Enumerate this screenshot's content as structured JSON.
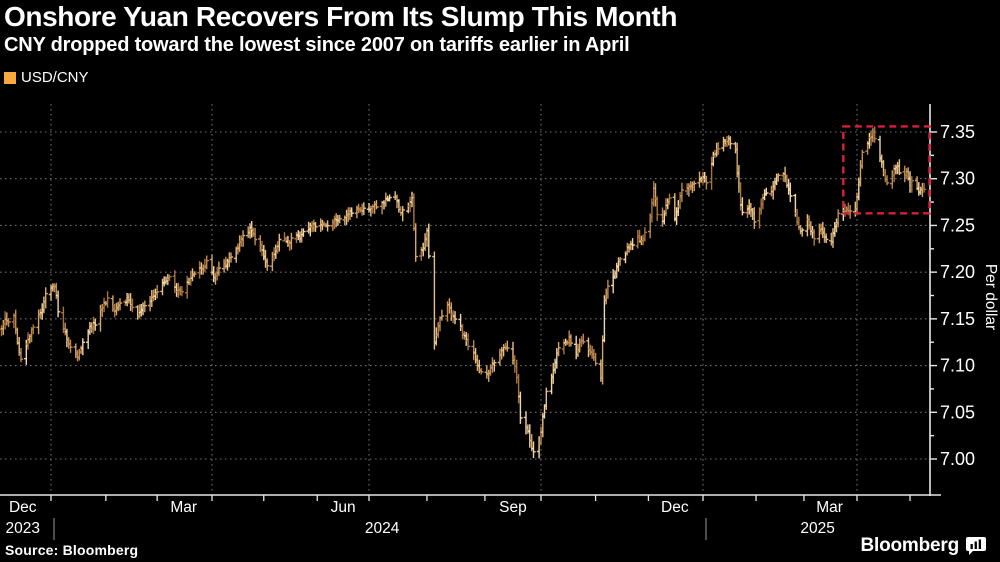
{
  "header": {
    "title": "Onshore Yuan Recovers From Its Slump This Month",
    "subtitle": "CNY dropped toward the lowest since 2007 on tariffs earlier in April"
  },
  "legend": {
    "label": "USD/CNY",
    "swatch_color": "#f7a93d"
  },
  "source": "Source: Bloomberg",
  "branding": {
    "logo_text": "Bloomberg",
    "logo_icon": "bar-chart-bubble-icon"
  },
  "colors": {
    "background": "#000000",
    "text": "#ffffff",
    "axis": "#e8e8e8",
    "grid_dots": "#6b6b6b",
    "year_separator": "#9a9a9a",
    "annotation_red": "#d81f3c",
    "bar_palette": [
      "#a8743e",
      "#c08a4e",
      "#d4a468",
      "#e6bf86",
      "#f3d7a6"
    ]
  },
  "chart_data": {
    "type": "bar",
    "subtype": "ohlc-daily-bars",
    "title": "Onshore Yuan Recovers From Its Slump This Month",
    "xlabel": "",
    "ylabel": "Per dollar",
    "grid": "dotted",
    "y_axis": {
      "side": "right",
      "min": 6.97,
      "max": 7.385,
      "major_tick_step": 0.05,
      "minor_tick_step": 0.025,
      "tick_labels": [
        "7.00",
        "7.05",
        "7.10",
        "7.15",
        "7.20",
        "7.25",
        "7.30",
        "7.35"
      ]
    },
    "x_axis": {
      "month_labels": [
        {
          "label": "Dec",
          "center": "2023-12-16"
        },
        {
          "label": "Mar",
          "center": "2024-03-16"
        },
        {
          "label": "Jun",
          "center": "2024-06-16"
        },
        {
          "label": "Sep",
          "center": "2024-09-16"
        },
        {
          "label": "Dec",
          "center": "2024-12-16"
        },
        {
          "label": "Mar",
          "center": "2025-03-16"
        }
      ],
      "year_labels": [
        {
          "label": "2023",
          "center": "2023-12-16"
        },
        {
          "label": "2024",
          "center": "2024-07-08"
        },
        {
          "label": "2025",
          "center": "2025-03-09"
        }
      ],
      "year_separators": [
        "2024-01-01",
        "2025-01-01"
      ],
      "gridline_months": [
        "2024-01-01",
        "2024-04-01",
        "2024-07-01",
        "2024-10-01",
        "2025-01-01",
        "2025-04-01"
      ]
    },
    "annotation_box": {
      "style": "dashed",
      "color": "#d81f3c",
      "x_start": "2025-03-24",
      "x_end": "axis",
      "y_top": 7.356,
      "y_bottom": 7.263
    },
    "series": [
      {
        "name": "USD/CNY",
        "points": [
          [
            "2023-12-04",
            7.138
          ],
          [
            "2023-12-06",
            7.152
          ],
          [
            "2023-12-08",
            7.145
          ],
          [
            "2023-12-11",
            7.155
          ],
          [
            "2023-12-13",
            7.125
          ],
          [
            "2023-12-15",
            7.105
          ],
          [
            "2023-12-19",
            7.13
          ],
          [
            "2023-12-22",
            7.14
          ],
          [
            "2023-12-27",
            7.16
          ],
          [
            "2023-12-29",
            7.178
          ],
          [
            "2024-01-03",
            7.185
          ],
          [
            "2024-01-05",
            7.16
          ],
          [
            "2024-01-09",
            7.135
          ],
          [
            "2024-01-12",
            7.12
          ],
          [
            "2024-01-16",
            7.108
          ],
          [
            "2024-01-19",
            7.125
          ],
          [
            "2024-01-23",
            7.14
          ],
          [
            "2024-01-26",
            7.145
          ],
          [
            "2024-01-30",
            7.162
          ],
          [
            "2024-02-02",
            7.17
          ],
          [
            "2024-02-06",
            7.158
          ],
          [
            "2024-02-09",
            7.168
          ],
          [
            "2024-02-14",
            7.172
          ],
          [
            "2024-02-18",
            7.152
          ],
          [
            "2024-02-21",
            7.16
          ],
          [
            "2024-02-26",
            7.168
          ],
          [
            "2024-02-29",
            7.176
          ],
          [
            "2024-03-05",
            7.188
          ],
          [
            "2024-03-08",
            7.195
          ],
          [
            "2024-03-12",
            7.182
          ],
          [
            "2024-03-15",
            7.178
          ],
          [
            "2024-03-19",
            7.192
          ],
          [
            "2024-03-22",
            7.198
          ],
          [
            "2024-03-26",
            7.205
          ],
          [
            "2024-03-29",
            7.21
          ],
          [
            "2024-04-02",
            7.196
          ],
          [
            "2024-04-05",
            7.202
          ],
          [
            "2024-04-09",
            7.21
          ],
          [
            "2024-04-12",
            7.216
          ],
          [
            "2024-04-16",
            7.228
          ],
          [
            "2024-04-19",
            7.238
          ],
          [
            "2024-04-23",
            7.246
          ],
          [
            "2024-04-26",
            7.235
          ],
          [
            "2024-04-30",
            7.225
          ],
          [
            "2024-05-03",
            7.205
          ],
          [
            "2024-05-08",
            7.222
          ],
          [
            "2024-05-11",
            7.24
          ],
          [
            "2024-05-15",
            7.228
          ],
          [
            "2024-05-18",
            7.24
          ],
          [
            "2024-05-22",
            7.236
          ],
          [
            "2024-05-25",
            7.244
          ],
          [
            "2024-05-29",
            7.248
          ],
          [
            "2024-06-03",
            7.25
          ],
          [
            "2024-06-07",
            7.252
          ],
          [
            "2024-06-12",
            7.256
          ],
          [
            "2024-06-17",
            7.26
          ],
          [
            "2024-06-21",
            7.264
          ],
          [
            "2024-06-26",
            7.267
          ],
          [
            "2024-06-28",
            7.266
          ],
          [
            "2024-07-02",
            7.269
          ],
          [
            "2024-07-05",
            7.272
          ],
          [
            "2024-07-10",
            7.276
          ],
          [
            "2024-07-15",
            7.28
          ],
          [
            "2024-07-18",
            7.262
          ],
          [
            "2024-07-22",
            7.272
          ],
          [
            "2024-07-24",
            7.278
          ],
          [
            "2024-07-26",
            7.218
          ],
          [
            "2024-07-30",
            7.225
          ],
          [
            "2024-08-01",
            7.245
          ],
          [
            "2024-08-05",
            7.125
          ],
          [
            "2024-08-08",
            7.152
          ],
          [
            "2024-08-12",
            7.165
          ],
          [
            "2024-08-15",
            7.152
          ],
          [
            "2024-08-19",
            7.14
          ],
          [
            "2024-08-22",
            7.125
          ],
          [
            "2024-08-26",
            7.112
          ],
          [
            "2024-08-29",
            7.092
          ],
          [
            "2024-09-02",
            7.09
          ],
          [
            "2024-09-05",
            7.102
          ],
          [
            "2024-09-09",
            7.112
          ],
          [
            "2024-09-12",
            7.122
          ],
          [
            "2024-09-16",
            7.108
          ],
          [
            "2024-09-18",
            7.09
          ],
          [
            "2024-09-20",
            7.045
          ],
          [
            "2024-09-24",
            7.03
          ],
          [
            "2024-09-26",
            7.012
          ],
          [
            "2024-09-28",
            7.002
          ],
          [
            "2024-09-30",
            7.015
          ],
          [
            "2024-10-02",
            7.045
          ],
          [
            "2024-10-04",
            7.07
          ],
          [
            "2024-10-08",
            7.095
          ],
          [
            "2024-10-10",
            7.115
          ],
          [
            "2024-10-14",
            7.122
          ],
          [
            "2024-10-17",
            7.128
          ],
          [
            "2024-10-21",
            7.112
          ],
          [
            "2024-10-24",
            7.128
          ],
          [
            "2024-10-28",
            7.118
          ],
          [
            "2024-10-31",
            7.108
          ],
          [
            "2024-11-04",
            7.088
          ],
          [
            "2024-11-06",
            7.172
          ],
          [
            "2024-11-08",
            7.185
          ],
          [
            "2024-11-12",
            7.198
          ],
          [
            "2024-11-14",
            7.21
          ],
          [
            "2024-11-18",
            7.222
          ],
          [
            "2024-11-21",
            7.228
          ],
          [
            "2024-11-25",
            7.238
          ],
          [
            "2024-11-28",
            7.233
          ],
          [
            "2024-12-02",
            7.262
          ],
          [
            "2024-12-04",
            7.29
          ],
          [
            "2024-12-06",
            7.262
          ],
          [
            "2024-12-09",
            7.252
          ],
          [
            "2024-12-11",
            7.272
          ],
          [
            "2024-12-13",
            7.278
          ],
          [
            "2024-12-16",
            7.255
          ],
          [
            "2024-12-18",
            7.272
          ],
          [
            "2024-12-20",
            7.286
          ],
          [
            "2024-12-24",
            7.292
          ],
          [
            "2024-12-27",
            7.297
          ],
          [
            "2024-12-31",
            7.3
          ],
          [
            "2025-01-03",
            7.298
          ],
          [
            "2025-01-07",
            7.326
          ],
          [
            "2025-01-09",
            7.332
          ],
          [
            "2025-01-13",
            7.338
          ],
          [
            "2025-01-16",
            7.341
          ],
          [
            "2025-01-20",
            7.33
          ],
          [
            "2025-01-22",
            7.288
          ],
          [
            "2025-01-24",
            7.262
          ],
          [
            "2025-01-28",
            7.272
          ],
          [
            "2025-01-31",
            7.255
          ],
          [
            "2025-02-04",
            7.272
          ],
          [
            "2025-02-06",
            7.286
          ],
          [
            "2025-02-10",
            7.288
          ],
          [
            "2025-02-13",
            7.3
          ],
          [
            "2025-02-15",
            7.31
          ],
          [
            "2025-02-18",
            7.3
          ],
          [
            "2025-02-20",
            7.288
          ],
          [
            "2025-02-24",
            7.262
          ],
          [
            "2025-02-27",
            7.242
          ],
          [
            "2025-03-03",
            7.258
          ],
          [
            "2025-03-05",
            7.246
          ],
          [
            "2025-03-07",
            7.235
          ],
          [
            "2025-03-11",
            7.248
          ],
          [
            "2025-03-13",
            7.238
          ],
          [
            "2025-03-17",
            7.232
          ],
          [
            "2025-03-19",
            7.248
          ],
          [
            "2025-03-21",
            7.262
          ],
          [
            "2025-03-25",
            7.268
          ],
          [
            "2025-03-27",
            7.262
          ],
          [
            "2025-03-31",
            7.266
          ],
          [
            "2025-04-02",
            7.298
          ],
          [
            "2025-04-04",
            7.328
          ],
          [
            "2025-04-08",
            7.342
          ],
          [
            "2025-04-10",
            7.35
          ],
          [
            "2025-04-12",
            7.338
          ],
          [
            "2025-04-15",
            7.318
          ],
          [
            "2025-04-17",
            7.298
          ],
          [
            "2025-04-19",
            7.29
          ],
          [
            "2025-04-22",
            7.312
          ],
          [
            "2025-04-24",
            7.315
          ],
          [
            "2025-04-26",
            7.298
          ],
          [
            "2025-04-29",
            7.305
          ],
          [
            "2025-05-01",
            7.292
          ],
          [
            "2025-05-03",
            7.3
          ],
          [
            "2025-05-06",
            7.288
          ],
          [
            "2025-05-08",
            7.292
          ],
          [
            "2025-05-09",
            7.29
          ]
        ]
      }
    ]
  }
}
